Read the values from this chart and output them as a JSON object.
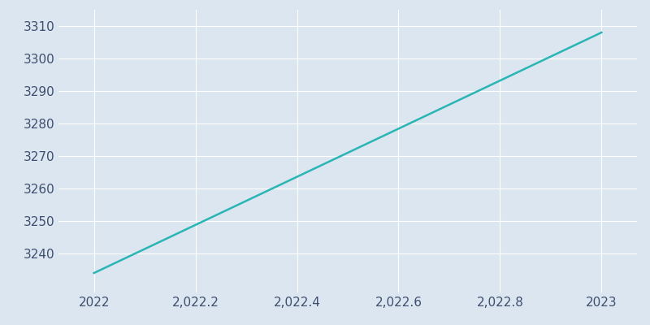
{
  "x": [
    2022,
    2023
  ],
  "y": [
    3234,
    3308
  ],
  "line_color": "#2ab5b5",
  "line_width": 1.8,
  "background_color": "#dce6f0",
  "grid_color": "#ffffff",
  "xlim": [
    2021.93,
    2023.07
  ],
  "ylim": [
    3228,
    3315
  ],
  "yticks": [
    3240,
    3250,
    3260,
    3270,
    3280,
    3290,
    3300,
    3310
  ],
  "xticks": [
    2022,
    2022.2,
    2022.4,
    2022.6,
    2022.8,
    2023
  ],
  "xtick_labels": [
    "2022",
    "2,022.2",
    "2,022.4",
    "2,022.6",
    "2,022.8",
    "2023"
  ],
  "tick_color": "#3d4f6e",
  "tick_fontsize": 11
}
